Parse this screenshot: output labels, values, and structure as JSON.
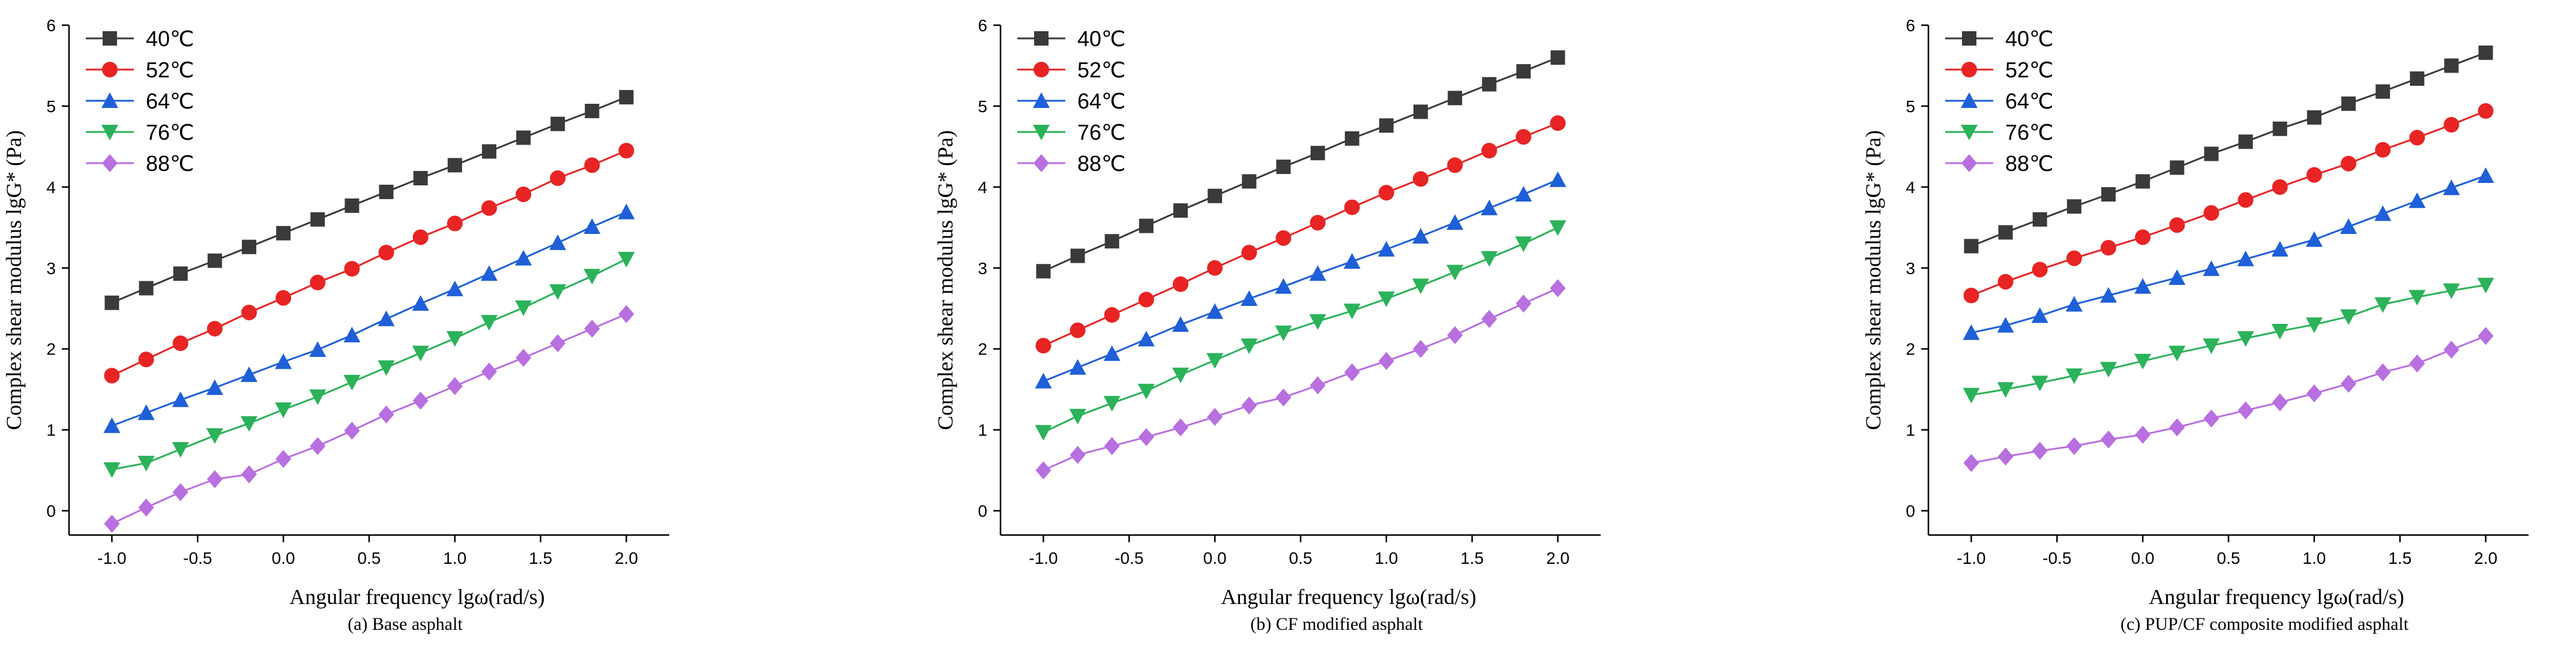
{
  "chart_data": [
    {
      "type": "line",
      "caption": "(a) Base asphalt",
      "xlabel": "Angular frequency lgω(rad/s)",
      "ylabel": "Complex shear modulus lgG* (Pa)",
      "xlim": [
        -1.25,
        2.25
      ],
      "ylim": [
        -0.3,
        6
      ],
      "xticks": [
        "-1.0",
        "-0.5",
        "0.0",
        "0.5",
        "1.0",
        "1.5",
        "2.0"
      ],
      "yticks": [
        "0",
        "1",
        "2",
        "3",
        "4",
        "5",
        "6"
      ],
      "x": [
        -1.0,
        -0.8,
        -0.6,
        -0.4,
        -0.2,
        0.0,
        0.2,
        0.4,
        0.6,
        0.8,
        1.0,
        1.2,
        1.4,
        1.6,
        1.8,
        2.0
      ],
      "series": [
        {
          "name": "40℃",
          "color": "#3a3a3a",
          "marker": "square",
          "values": [
            2.57,
            2.75,
            2.93,
            3.09,
            3.26,
            3.43,
            3.6,
            3.77,
            3.94,
            4.11,
            4.27,
            4.44,
            4.61,
            4.78,
            4.94,
            5.11
          ]
        },
        {
          "name": "52℃",
          "color": "#e82424",
          "marker": "circle",
          "values": [
            1.67,
            1.87,
            2.07,
            2.25,
            2.45,
            2.63,
            2.82,
            2.99,
            3.19,
            3.38,
            3.55,
            3.74,
            3.91,
            4.11,
            4.27,
            4.45
          ]
        },
        {
          "name": "64℃",
          "color": "#1f5fd8",
          "marker": "triangle-up",
          "values": [
            1.05,
            1.21,
            1.37,
            1.52,
            1.68,
            1.84,
            1.99,
            2.17,
            2.37,
            2.56,
            2.74,
            2.93,
            3.12,
            3.31,
            3.51,
            3.69
          ]
        },
        {
          "name": "76℃",
          "color": "#2bb25a",
          "marker": "triangle-down",
          "values": [
            0.51,
            0.59,
            0.76,
            0.93,
            1.08,
            1.25,
            1.41,
            1.59,
            1.77,
            1.95,
            2.13,
            2.33,
            2.51,
            2.71,
            2.9,
            3.11
          ]
        },
        {
          "name": "88℃",
          "color": "#b86fe0",
          "marker": "diamond",
          "values": [
            -0.16,
            0.04,
            0.23,
            0.39,
            0.45,
            0.64,
            0.8,
            0.99,
            1.19,
            1.36,
            1.54,
            1.72,
            1.89,
            2.07,
            2.25,
            2.43
          ]
        }
      ]
    },
    {
      "type": "line",
      "caption": "(b) CF modified asphalt",
      "xlabel": "Angular frequency lgω(rad/s)",
      "ylabel": "Complex shear modulus lgG* (Pa)",
      "xlim": [
        -1.25,
        2.25
      ],
      "ylim": [
        -0.3,
        6
      ],
      "xticks": [
        "-1.0",
        "-0.5",
        "0.0",
        "0.5",
        "1.0",
        "1.5",
        "2.0"
      ],
      "yticks": [
        "0",
        "1",
        "2",
        "3",
        "4",
        "5",
        "6"
      ],
      "x": [
        -1.0,
        -0.8,
        -0.6,
        -0.4,
        -0.2,
        0.0,
        0.2,
        0.4,
        0.6,
        0.8,
        1.0,
        1.2,
        1.4,
        1.6,
        1.8,
        2.0
      ],
      "series": [
        {
          "name": "40℃",
          "color": "#3a3a3a",
          "marker": "square",
          "values": [
            2.96,
            3.15,
            3.33,
            3.52,
            3.71,
            3.89,
            4.07,
            4.25,
            4.42,
            4.6,
            4.76,
            4.93,
            5.1,
            5.27,
            5.43,
            5.6
          ]
        },
        {
          "name": "52℃",
          "color": "#e82424",
          "marker": "circle",
          "values": [
            2.04,
            2.23,
            2.42,
            2.61,
            2.8,
            3.0,
            3.19,
            3.37,
            3.56,
            3.75,
            3.93,
            4.1,
            4.27,
            4.45,
            4.62,
            4.79
          ]
        },
        {
          "name": "64℃",
          "color": "#1f5fd8",
          "marker": "triangle-up",
          "values": [
            1.6,
            1.77,
            1.94,
            2.12,
            2.3,
            2.46,
            2.62,
            2.77,
            2.93,
            3.08,
            3.23,
            3.39,
            3.56,
            3.74,
            3.91,
            4.09
          ]
        },
        {
          "name": "76℃",
          "color": "#2bb25a",
          "marker": "triangle-down",
          "values": [
            0.97,
            1.17,
            1.33,
            1.48,
            1.68,
            1.86,
            2.04,
            2.2,
            2.34,
            2.47,
            2.62,
            2.78,
            2.95,
            3.12,
            3.3,
            3.5
          ]
        },
        {
          "name": "88℃",
          "color": "#b86fe0",
          "marker": "diamond",
          "values": [
            0.5,
            0.69,
            0.8,
            0.91,
            1.03,
            1.16,
            1.3,
            1.4,
            1.55,
            1.71,
            1.85,
            2.0,
            2.17,
            2.37,
            2.56,
            2.75
          ]
        }
      ]
    },
    {
      "type": "line",
      "caption": "(c) PUP/CF composite modified asphalt",
      "xlabel": "Angular frequency lgω(rad/s)",
      "ylabel": "Complex shear modulus lgG* (Pa)",
      "xlim": [
        -1.25,
        2.25
      ],
      "ylim": [
        -0.3,
        6
      ],
      "xticks": [
        "-1.0",
        "-0.5",
        "0.0",
        "0.5",
        "1.0",
        "1.5",
        "2.0"
      ],
      "yticks": [
        "0",
        "1",
        "2",
        "3",
        "4",
        "5",
        "6"
      ],
      "x": [
        -1.0,
        -0.8,
        -0.6,
        -0.4,
        -0.2,
        0.0,
        0.2,
        0.4,
        0.6,
        0.8,
        1.0,
        1.2,
        1.4,
        1.6,
        1.8,
        2.0
      ],
      "series": [
        {
          "name": "40℃",
          "color": "#3a3a3a",
          "marker": "square",
          "values": [
            3.27,
            3.44,
            3.6,
            3.76,
            3.91,
            4.07,
            4.24,
            4.41,
            4.56,
            4.72,
            4.86,
            5.03,
            5.18,
            5.34,
            5.5,
            5.66
          ]
        },
        {
          "name": "52℃",
          "color": "#e82424",
          "marker": "circle",
          "values": [
            2.66,
            2.83,
            2.98,
            3.12,
            3.25,
            3.38,
            3.53,
            3.68,
            3.84,
            4.0,
            4.15,
            4.29,
            4.46,
            4.61,
            4.77,
            4.94
          ]
        },
        {
          "name": "64℃",
          "color": "#1f5fd8",
          "marker": "triangle-up",
          "values": [
            2.2,
            2.29,
            2.41,
            2.55,
            2.66,
            2.77,
            2.88,
            2.99,
            3.11,
            3.23,
            3.35,
            3.51,
            3.67,
            3.83,
            3.99,
            4.14
          ]
        },
        {
          "name": "76℃",
          "color": "#2bb25a",
          "marker": "triangle-down",
          "values": [
            1.43,
            1.5,
            1.58,
            1.67,
            1.75,
            1.85,
            1.95,
            2.04,
            2.13,
            2.22,
            2.3,
            2.4,
            2.55,
            2.64,
            2.72,
            2.79
          ]
        },
        {
          "name": "88℃",
          "color": "#b86fe0",
          "marker": "diamond",
          "values": [
            0.59,
            0.67,
            0.74,
            0.8,
            0.88,
            0.94,
            1.03,
            1.14,
            1.24,
            1.34,
            1.45,
            1.57,
            1.71,
            1.82,
            1.99,
            2.16
          ]
        }
      ]
    }
  ]
}
